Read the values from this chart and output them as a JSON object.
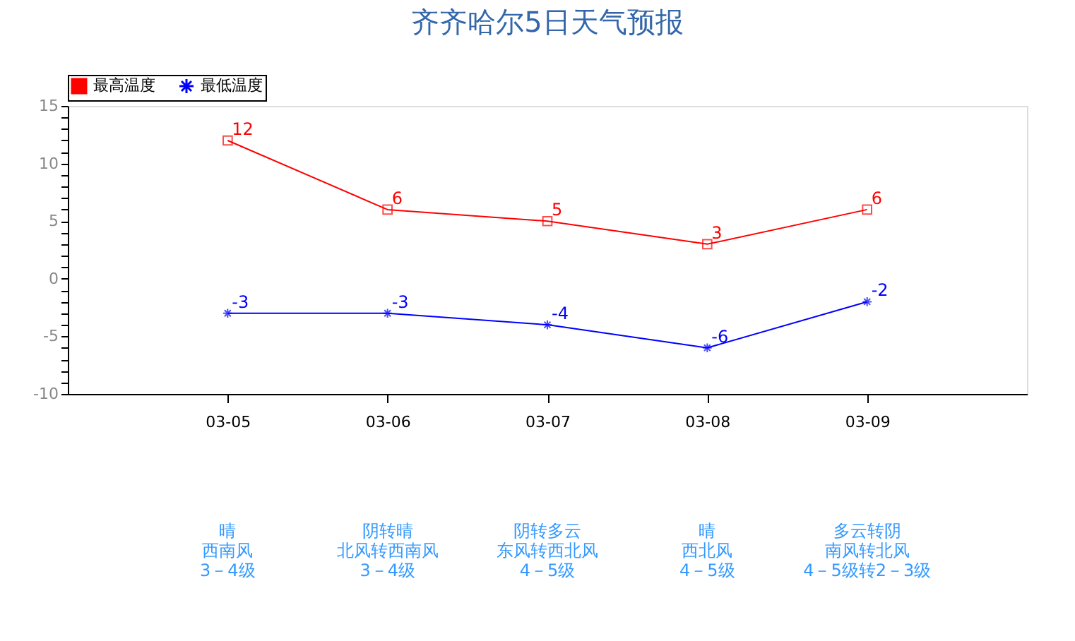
{
  "chart_data": {
    "type": "line",
    "title": "齐齐哈尔5日天气预报",
    "categories": [
      "03-05",
      "03-06",
      "03-07",
      "03-08",
      "03-09"
    ],
    "series": [
      {
        "name": "最高温度",
        "color": "#ff0000",
        "values": [
          12,
          6,
          5,
          3,
          6
        ],
        "marker": "square"
      },
      {
        "name": "最低温度",
        "color": "#0000ff",
        "values": [
          -3,
          -3,
          -4,
          -6,
          -2
        ],
        "marker": "cross"
      }
    ],
    "ylim": [
      -10,
      15
    ],
    "yticks": [
      -10,
      {
        "value": -9,
        "label": null
      },
      {
        "value": -8,
        "label": null
      },
      {
        "value": -7,
        "label": null
      },
      {
        "value": -6,
        "label": null
      },
      -5,
      {
        "value": -4,
        "label": null
      },
      {
        "value": -3,
        "label": null
      },
      {
        "value": -2,
        "label": null
      },
      {
        "value": -1,
        "label": null
      },
      0,
      {
        "value": 1,
        "label": null
      },
      {
        "value": 2,
        "label": null
      },
      {
        "value": 3,
        "label": null
      },
      {
        "value": 4,
        "label": null
      },
      5,
      {
        "value": 6,
        "label": null
      },
      {
        "value": 7,
        "label": null
      },
      {
        "value": 8,
        "label": null
      },
      {
        "value": 9,
        "label": null
      },
      10,
      {
        "value": 11,
        "label": null
      },
      {
        "value": 12,
        "label": null
      },
      {
        "value": 13,
        "label": null
      },
      {
        "value": 14,
        "label": null
      },
      15
    ],
    "data_labels": true,
    "grid": false,
    "legend": "top left",
    "line_style": "solid",
    "annotations": [
      "晴",
      "西南风",
      "3－4级",
      "阴转晴",
      "北风转西南风",
      "3－4级",
      "阴转多云",
      "东风转西北风",
      "4－5级",
      "晴",
      "西北风",
      "4－5级",
      "多云转阴",
      "南风转北风",
      "4－5级转2－3级"
    ]
  }
}
